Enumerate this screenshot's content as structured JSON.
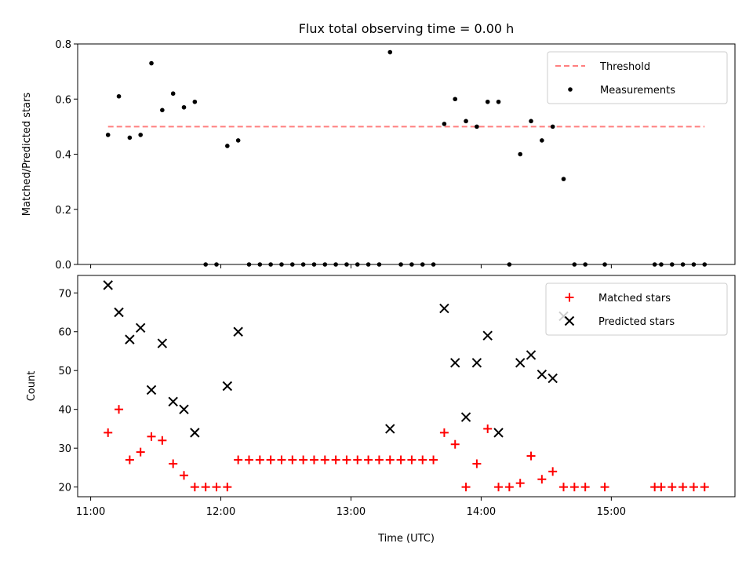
{
  "chart_data": [
    {
      "type": "scatter",
      "title": "Flux total observing time = 0.00 h",
      "xlabel": "",
      "ylabel": "Matched/Predicted stars",
      "ylim": [
        0,
        0.8
      ],
      "yticks": [
        0.0,
        0.2,
        0.4,
        0.6,
        0.8
      ],
      "ytick_labels": [
        "0.0",
        "0.2",
        "0.4",
        "0.6",
        "0.8"
      ],
      "xlim": [
        "10:54",
        "15:57"
      ],
      "xticks": [
        "11:00",
        "12:00",
        "13:00",
        "14:00",
        "15:00"
      ],
      "show_x_tick_labels": false,
      "legend_position": "top-right",
      "threshold": {
        "name": "Threshold",
        "value": 0.5,
        "x_range": [
          "11:08",
          "15:43"
        ],
        "color": "#ff7f7f"
      },
      "series": [
        {
          "name": "Measurements",
          "marker": "dot",
          "color": "#000000",
          "points": [
            [
              "11:08",
              0.47
            ],
            [
              "11:13",
              0.61
            ],
            [
              "11:18",
              0.46
            ],
            [
              "11:23",
              0.47
            ],
            [
              "11:28",
              0.73
            ],
            [
              "11:33",
              0.56
            ],
            [
              "11:38",
              0.62
            ],
            [
              "11:43",
              0.57
            ],
            [
              "11:48",
              0.59
            ],
            [
              "11:53",
              0.0
            ],
            [
              "11:58",
              0.0
            ],
            [
              "12:03",
              0.43
            ],
            [
              "12:08",
              0.45
            ],
            [
              "12:13",
              0.0
            ],
            [
              "12:18",
              0.0
            ],
            [
              "12:23",
              0.0
            ],
            [
              "12:28",
              0.0
            ],
            [
              "12:33",
              0.0
            ],
            [
              "12:38",
              0.0
            ],
            [
              "12:43",
              0.0
            ],
            [
              "12:48",
              0.0
            ],
            [
              "12:53",
              0.0
            ],
            [
              "12:58",
              0.0
            ],
            [
              "13:03",
              0.0
            ],
            [
              "13:08",
              0.0
            ],
            [
              "13:13",
              0.0
            ],
            [
              "13:18",
              0.77
            ],
            [
              "13:23",
              0.0
            ],
            [
              "13:28",
              0.0
            ],
            [
              "13:33",
              0.0
            ],
            [
              "13:38",
              0.0
            ],
            [
              "13:43",
              0.51
            ],
            [
              "13:48",
              0.6
            ],
            [
              "13:53",
              0.52
            ],
            [
              "13:58",
              0.5
            ],
            [
              "14:03",
              0.59
            ],
            [
              "14:08",
              0.59
            ],
            [
              "14:13",
              0.0
            ],
            [
              "14:18",
              0.4
            ],
            [
              "14:23",
              0.52
            ],
            [
              "14:28",
              0.45
            ],
            [
              "14:33",
              0.5
            ],
            [
              "14:38",
              0.31
            ],
            [
              "14:43",
              0.0
            ],
            [
              "14:48",
              0.0
            ],
            [
              "14:57",
              0.0
            ],
            [
              "15:20",
              0.0
            ],
            [
              "15:23",
              0.0
            ],
            [
              "15:28",
              0.0
            ],
            [
              "15:33",
              0.0
            ],
            [
              "15:38",
              0.0
            ],
            [
              "15:43",
              0.0
            ]
          ]
        }
      ]
    },
    {
      "type": "scatter",
      "title": "",
      "xlabel": "Time (UTC)",
      "ylabel": "Count",
      "ylim": [
        17.5,
        74.5
      ],
      "yticks": [
        20,
        30,
        40,
        50,
        60,
        70
      ],
      "ytick_labels": [
        "20",
        "30",
        "40",
        "50",
        "60",
        "70"
      ],
      "xlim": [
        "10:54",
        "15:57"
      ],
      "xticks": [
        "11:00",
        "12:00",
        "13:00",
        "14:00",
        "15:00"
      ],
      "xtick_labels": [
        "11:00",
        "12:00",
        "13:00",
        "14:00",
        "15:00"
      ],
      "legend_position": "top-right",
      "series": [
        {
          "name": "Matched stars",
          "marker": "plus",
          "color": "#ff0000",
          "points": [
            [
              "11:08",
              34
            ],
            [
              "11:13",
              40
            ],
            [
              "11:18",
              27
            ],
            [
              "11:23",
              29
            ],
            [
              "11:28",
              33
            ],
            [
              "11:33",
              32
            ],
            [
              "11:38",
              26
            ],
            [
              "11:43",
              23
            ],
            [
              "11:48",
              20
            ],
            [
              "11:53",
              20
            ],
            [
              "11:58",
              20
            ],
            [
              "12:03",
              20
            ],
            [
              "12:08",
              27
            ],
            [
              "12:13",
              27
            ],
            [
              "12:18",
              27
            ],
            [
              "12:23",
              27
            ],
            [
              "12:28",
              27
            ],
            [
              "12:33",
              27
            ],
            [
              "12:38",
              27
            ],
            [
              "12:43",
              27
            ],
            [
              "12:48",
              27
            ],
            [
              "12:53",
              27
            ],
            [
              "12:58",
              27
            ],
            [
              "13:03",
              27
            ],
            [
              "13:08",
              27
            ],
            [
              "13:13",
              27
            ],
            [
              "13:18",
              27
            ],
            [
              "13:23",
              27
            ],
            [
              "13:28",
              27
            ],
            [
              "13:33",
              27
            ],
            [
              "13:38",
              27
            ],
            [
              "13:43",
              34
            ],
            [
              "13:48",
              31
            ],
            [
              "13:53",
              20
            ],
            [
              "13:58",
              26
            ],
            [
              "14:03",
              35
            ],
            [
              "14:08",
              20
            ],
            [
              "14:13",
              20
            ],
            [
              "14:18",
              21
            ],
            [
              "14:23",
              28
            ],
            [
              "14:28",
              22
            ],
            [
              "14:33",
              24
            ],
            [
              "14:38",
              20
            ],
            [
              "14:43",
              20
            ],
            [
              "14:48",
              20
            ],
            [
              "14:57",
              20
            ],
            [
              "15:20",
              20
            ],
            [
              "15:23",
              20
            ],
            [
              "15:28",
              20
            ],
            [
              "15:33",
              20
            ],
            [
              "15:38",
              20
            ],
            [
              "15:43",
              20
            ]
          ]
        },
        {
          "name": "Predicted stars",
          "marker": "x",
          "color": "#000000",
          "points": [
            [
              "11:08",
              72
            ],
            [
              "11:13",
              65
            ],
            [
              "11:18",
              58
            ],
            [
              "11:23",
              61
            ],
            [
              "11:28",
              45
            ],
            [
              "11:33",
              57
            ],
            [
              "11:38",
              42
            ],
            [
              "11:43",
              40
            ],
            [
              "11:48",
              34
            ],
            [
              "12:03",
              46
            ],
            [
              "12:08",
              60
            ],
            [
              "13:18",
              35
            ],
            [
              "13:43",
              66
            ],
            [
              "13:48",
              52
            ],
            [
              "13:53",
              38
            ],
            [
              "13:58",
              52
            ],
            [
              "14:03",
              59
            ],
            [
              "14:08",
              34
            ],
            [
              "14:18",
              52
            ],
            [
              "14:23",
              54
            ],
            [
              "14:28",
              49
            ],
            [
              "14:33",
              48
            ],
            [
              "14:38",
              64
            ]
          ]
        }
      ]
    }
  ]
}
